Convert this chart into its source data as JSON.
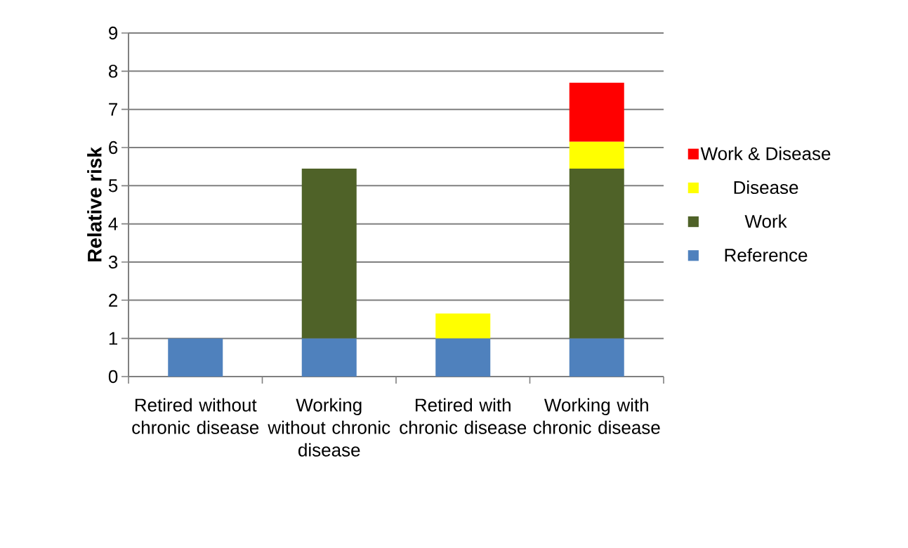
{
  "chart_data": {
    "type": "bar",
    "stacked": true,
    "ylabel": "Relative risk",
    "categories": [
      "Retired without chronic disease",
      "Working without chronic disease",
      "Retired with chronic disease",
      "Working with chronic disease"
    ],
    "series": [
      {
        "name": "Reference",
        "color": "#4f81bd",
        "values": [
          1,
          1,
          1,
          1
        ]
      },
      {
        "name": "Work",
        "color": "#4f6228",
        "values": [
          null,
          4.45,
          null,
          4.45
        ]
      },
      {
        "name": "Disease",
        "color": "#ffff00",
        "values": [
          null,
          null,
          0.65,
          0.7
        ]
      },
      {
        "name": "Work & Disease",
        "color": "#ff0000",
        "values": [
          null,
          null,
          null,
          1.55
        ]
      }
    ],
    "ylim": [
      0,
      9
    ],
    "yticks": [
      0,
      1,
      2,
      3,
      4,
      5,
      6,
      7,
      8,
      9
    ],
    "grid": "y",
    "legend": "right"
  }
}
